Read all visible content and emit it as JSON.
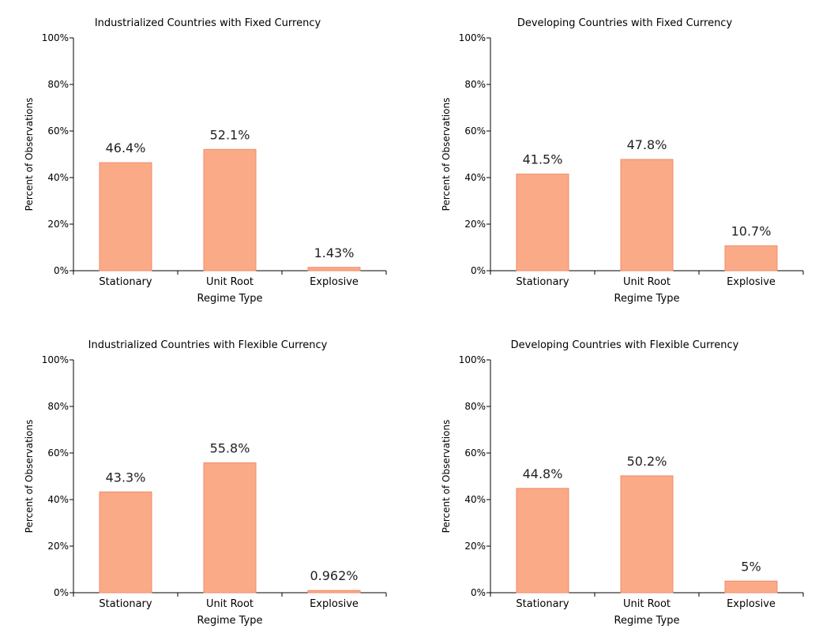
{
  "colors": {
    "bar_fill": "#FBAA87",
    "bar_stroke": "#F08A68",
    "axis": "#000000"
  },
  "chart_data": [
    {
      "type": "bar",
      "title": "Industrialized Countries with Fixed Currency",
      "xlabel": "Regime Type",
      "ylabel": "Percent of Observations",
      "categories": [
        "Stationary",
        "Unit Root",
        "Explosive"
      ],
      "values": [
        46.4,
        52.1,
        1.43
      ],
      "data_labels": [
        "46.4%",
        "52.1%",
        "1.43%"
      ],
      "yticks": [
        "0%",
        "20%",
        "40%",
        "60%",
        "80%",
        "100%"
      ],
      "ylim": [
        0,
        100
      ],
      "grid": false
    },
    {
      "type": "bar",
      "title": "Developing Countries with Fixed Currency",
      "xlabel": "Regime Type",
      "ylabel": "Percent of Observations",
      "categories": [
        "Stationary",
        "Unit Root",
        "Explosive"
      ],
      "values": [
        41.5,
        47.8,
        10.7
      ],
      "data_labels": [
        "41.5%",
        "47.8%",
        "10.7%"
      ],
      "yticks": [
        "0%",
        "20%",
        "40%",
        "60%",
        "80%",
        "100%"
      ],
      "ylim": [
        0,
        100
      ],
      "grid": false
    },
    {
      "type": "bar",
      "title": "Industrialized Countries with Flexible Currency",
      "xlabel": "Regime Type",
      "ylabel": "Percent of Observations",
      "categories": [
        "Stationary",
        "Unit Root",
        "Explosive"
      ],
      "values": [
        43.3,
        55.8,
        0.962
      ],
      "data_labels": [
        "43.3%",
        "55.8%",
        "0.962%"
      ],
      "yticks": [
        "0%",
        "20%",
        "40%",
        "60%",
        "80%",
        "100%"
      ],
      "ylim": [
        0,
        100
      ],
      "grid": false
    },
    {
      "type": "bar",
      "title": "Developing Countries with Flexible Currency",
      "xlabel": "Regime Type",
      "ylabel": "Percent of Observations",
      "categories": [
        "Stationary",
        "Unit Root",
        "Explosive"
      ],
      "values": [
        44.8,
        50.2,
        5
      ],
      "data_labels": [
        "44.8%",
        "50.2%",
        "5%"
      ],
      "yticks": [
        "0%",
        "20%",
        "40%",
        "60%",
        "80%",
        "100%"
      ],
      "ylim": [
        0,
        100
      ],
      "grid": false
    }
  ]
}
